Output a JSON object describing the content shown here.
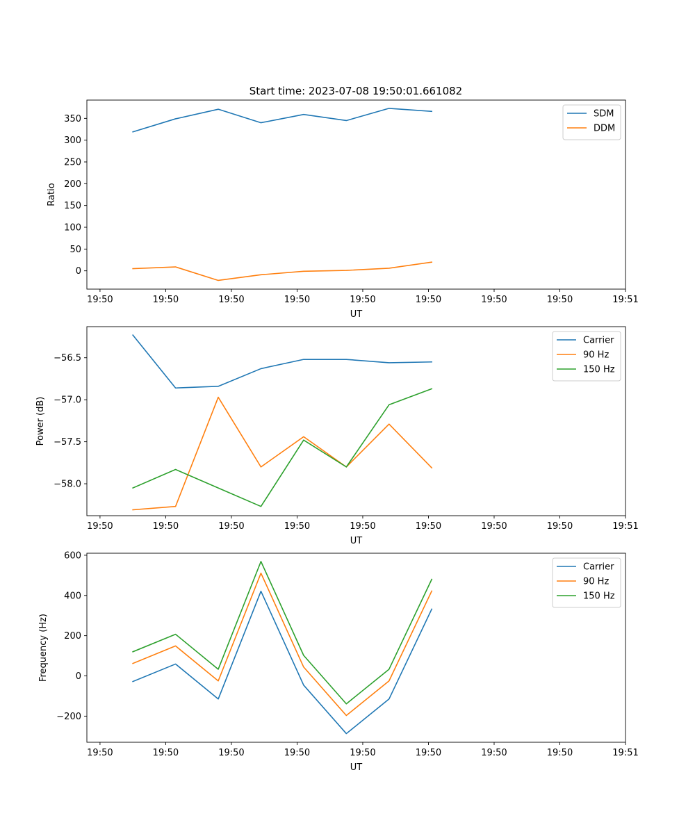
{
  "figure_title": "Start time: 2023-07-08 19:50:01.661082",
  "chart_data": [
    {
      "type": "line",
      "title": "Start time: 2023-07-08 19:50:01.661082",
      "xlabel": "UT",
      "ylabel": "Ratio",
      "xlim": [
        -0.2,
        8.0
      ],
      "ylim": [
        -42,
        392
      ],
      "x_ticks": [
        0,
        1,
        2,
        3,
        4,
        5,
        6,
        7,
        8
      ],
      "x_tick_labels": [
        "19:50",
        "19:50",
        "19:50",
        "19:50",
        "19:50",
        "19:50",
        "19:50",
        "19:50",
        "19:51"
      ],
      "y_ticks": [
        0,
        50,
        100,
        150,
        200,
        250,
        300,
        350
      ],
      "y_tick_labels": [
        "0",
        "50",
        "100",
        "150",
        "200",
        "250",
        "300",
        "350"
      ],
      "x": [
        0.5,
        1.15,
        1.8,
        2.45,
        3.1,
        3.75,
        4.4,
        5.05
      ],
      "series": [
        {
          "name": "SDM",
          "color": "#1f77b4",
          "values": [
            319,
            349,
            371,
            340,
            359,
            345,
            373,
            366
          ]
        },
        {
          "name": "DDM",
          "color": "#ff7f0e",
          "values": [
            5,
            9,
            -22,
            -9,
            -1,
            1,
            6,
            20
          ]
        }
      ]
    },
    {
      "type": "line",
      "xlabel": "UT",
      "ylabel": "Power (dB)",
      "xlim": [
        -0.2,
        8.0
      ],
      "ylim": [
        -58.38,
        -56.13
      ],
      "x_ticks": [
        0,
        1,
        2,
        3,
        4,
        5,
        6,
        7,
        8
      ],
      "x_tick_labels": [
        "19:50",
        "19:50",
        "19:50",
        "19:50",
        "19:50",
        "19:50",
        "19:50",
        "19:50",
        "19:51"
      ],
      "y_ticks": [
        -58.0,
        -57.5,
        -57.0,
        -56.5
      ],
      "y_tick_labels": [
        "−58.0",
        "−57.5",
        "−57.0",
        "−56.5"
      ],
      "x": [
        0.5,
        1.15,
        1.8,
        2.45,
        3.1,
        3.75,
        4.4,
        5.05
      ],
      "series": [
        {
          "name": "Carrier",
          "color": "#1f77b4",
          "values": [
            -56.23,
            -56.86,
            -56.84,
            -56.63,
            -56.52,
            -56.52,
            -56.56,
            -56.55
          ]
        },
        {
          "name": "90 Hz",
          "color": "#ff7f0e",
          "values": [
            -58.31,
            -58.27,
            -56.97,
            -57.8,
            -57.44,
            -57.8,
            -57.29,
            -57.81
          ]
        },
        {
          "name": "150 Hz",
          "color": "#2ca02c",
          "values": [
            -58.05,
            -57.83,
            -58.05,
            -58.27,
            -57.48,
            -57.8,
            -57.06,
            -56.87
          ]
        }
      ]
    },
    {
      "type": "line",
      "xlabel": "UT",
      "ylabel": "Frequency (Hz)",
      "xlim": [
        -0.2,
        8.0
      ],
      "ylim": [
        -330,
        610
      ],
      "x_ticks": [
        0,
        1,
        2,
        3,
        4,
        5,
        6,
        7,
        8
      ],
      "x_tick_labels": [
        "19:50",
        "19:50",
        "19:50",
        "19:50",
        "19:50",
        "19:50",
        "19:50",
        "19:50",
        "19:51"
      ],
      "y_ticks": [
        -200,
        0,
        200,
        400,
        600
      ],
      "y_tick_labels": [
        "−200",
        "0",
        "200",
        "400",
        "600"
      ],
      "x": [
        0.5,
        1.15,
        1.8,
        2.45,
        3.1,
        3.75,
        4.4,
        5.05
      ],
      "series": [
        {
          "name": "Carrier",
          "color": "#1f77b4",
          "values": [
            -28,
            59,
            -115,
            421,
            -46,
            -287,
            -115,
            332
          ]
        },
        {
          "name": "90 Hz",
          "color": "#ff7f0e",
          "values": [
            62,
            149,
            -25,
            511,
            44,
            -197,
            -25,
            422
          ]
        },
        {
          "name": "150 Hz",
          "color": "#2ca02c",
          "values": [
            120,
            207,
            33,
            569,
            102,
            -139,
            33,
            480
          ]
        }
      ]
    }
  ]
}
